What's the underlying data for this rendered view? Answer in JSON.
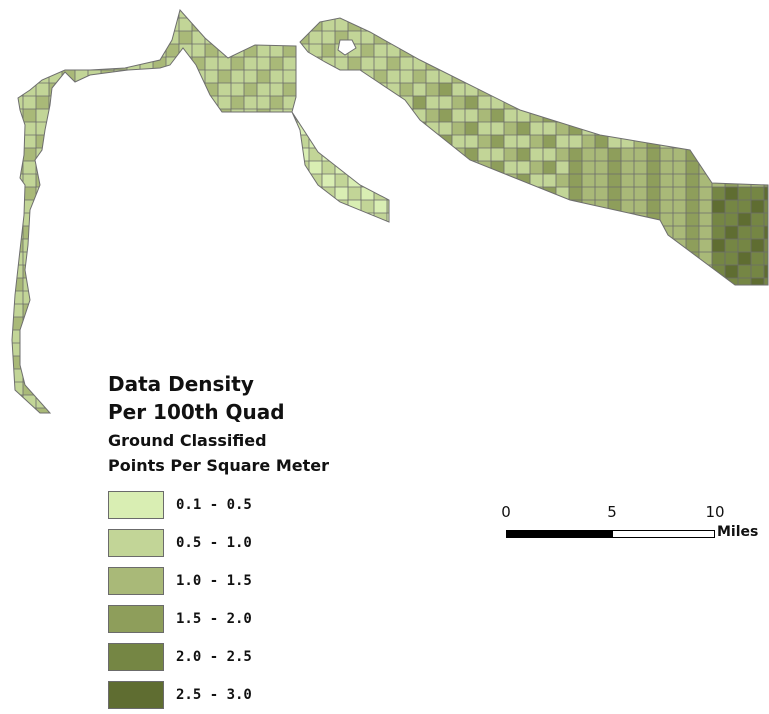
{
  "legend": {
    "title_line1": "Data Density",
    "title_line2": "Per 100th Quad",
    "subtitle_line1": "Ground Classified",
    "subtitle_line2": "Points Per Square Meter",
    "classes": [
      {
        "label": "0.1 - 0.5",
        "color": "#d9eeb3"
      },
      {
        "label": "0.5 - 1.0",
        "color": "#c2d597"
      },
      {
        "label": "1.0 - 1.5",
        "color": "#a9b978"
      },
      {
        "label": "1.5 - 2.0",
        "color": "#8e9e5b"
      },
      {
        "label": "2.0 - 2.5",
        "color": "#758644"
      },
      {
        "label": "2.5 - 3.0",
        "color": "#5f6d31"
      }
    ]
  },
  "scalebar": {
    "ticks": [
      "0",
      "5",
      "10"
    ],
    "units": "Miles"
  },
  "map": {
    "outline_color": "#6e6e6e",
    "grid_color": "#6b6b6b"
  }
}
